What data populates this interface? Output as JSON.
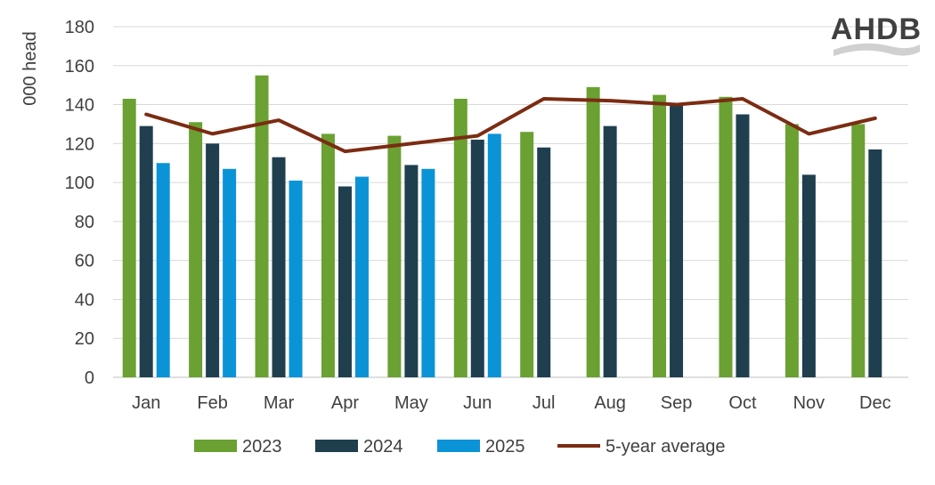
{
  "logo": {
    "text": "AHDB",
    "color": "#d0d0d0"
  },
  "chart_data": {
    "type": "bar",
    "ylabel": "000 head",
    "ylim": [
      0,
      180
    ],
    "yticks": [
      0,
      20,
      40,
      60,
      80,
      100,
      120,
      140,
      160,
      180
    ],
    "grid": true,
    "legend_position": "bottom",
    "categories": [
      "Jan",
      "Feb",
      "Mar",
      "Apr",
      "May",
      "Jun",
      "Jul",
      "Aug",
      "Sep",
      "Oct",
      "Nov",
      "Dec"
    ],
    "series": [
      {
        "name": "2023",
        "kind": "bar",
        "color": "#6aa132",
        "values": [
          143,
          131,
          155,
          125,
          124,
          143,
          126,
          149,
          145,
          144,
          130,
          130
        ]
      },
      {
        "name": "2024",
        "kind": "bar",
        "color": "#1f3f4f",
        "values": [
          129,
          120,
          113,
          98,
          109,
          122,
          118,
          129,
          140,
          135,
          104,
          117
        ]
      },
      {
        "name": "2025",
        "kind": "bar",
        "color": "#0b93d7",
        "values": [
          110,
          107,
          101,
          103,
          107,
          125,
          null,
          null,
          null,
          null,
          null,
          null
        ]
      },
      {
        "name": "5-year average",
        "kind": "line",
        "color": "#7b2c12",
        "values": [
          135,
          125,
          132,
          116,
          120,
          124,
          143,
          142,
          140,
          143,
          125,
          133
        ]
      }
    ]
  }
}
